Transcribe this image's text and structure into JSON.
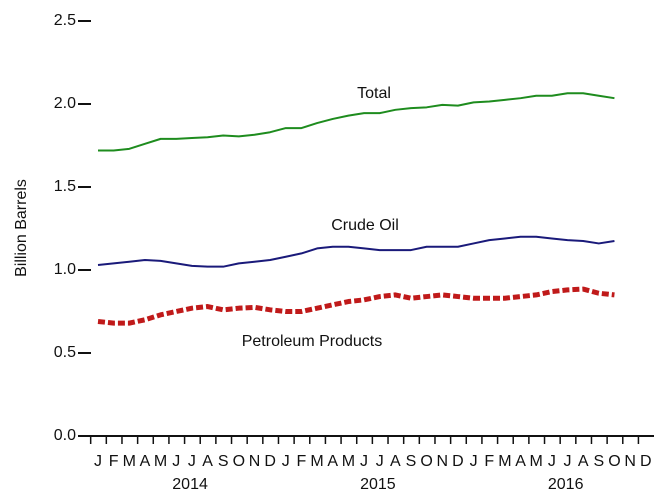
{
  "chart_data": {
    "type": "line",
    "y_label": "Billion Barrels",
    "categories": [
      "J",
      "F",
      "M",
      "A",
      "M",
      "J",
      "J",
      "A",
      "S",
      "O",
      "N",
      "D",
      "J",
      "F",
      "M",
      "A",
      "M",
      "J",
      "J",
      "A",
      "S",
      "O",
      "N",
      "D",
      "J",
      "F",
      "M",
      "A",
      "M",
      "J",
      "J",
      "A",
      "S",
      "O",
      "N",
      "D"
    ],
    "year_labels": [
      "2014",
      "2015",
      "2016"
    ],
    "annotations": [
      "Total",
      "Crude Oil",
      "Petroleum Products"
    ],
    "series": [
      {
        "name": "Total",
        "color": "#1e8c1e",
        "style": "solid",
        "values": [
          1.72,
          1.72,
          1.73,
          1.76,
          1.79,
          1.79,
          1.795,
          1.8,
          1.81,
          1.805,
          1.815,
          1.83,
          1.855,
          1.855,
          1.885,
          1.91,
          1.93,
          1.945,
          1.945,
          1.965,
          1.975,
          1.98,
          1.995,
          1.99,
          2.01,
          2.015,
          2.025,
          2.035,
          2.05,
          2.05,
          2.065,
          2.065,
          2.05,
          2.035,
          null,
          null
        ]
      },
      {
        "name": "Crude Oil",
        "color": "#1a1a7a",
        "style": "solid",
        "values": [
          1.03,
          1.04,
          1.05,
          1.06,
          1.055,
          1.04,
          1.025,
          1.02,
          1.02,
          1.04,
          1.05,
          1.06,
          1.08,
          1.1,
          1.13,
          1.14,
          1.14,
          1.13,
          1.12,
          1.12,
          1.12,
          1.14,
          1.14,
          1.14,
          1.16,
          1.18,
          1.19,
          1.2,
          1.2,
          1.19,
          1.18,
          1.175,
          1.16,
          1.175,
          null,
          null
        ]
      },
      {
        "name": "Petroleum Products",
        "color": "#c01a1a",
        "style": "dashed",
        "values": [
          0.69,
          0.68,
          0.68,
          0.7,
          0.73,
          0.75,
          0.77,
          0.78,
          0.76,
          0.77,
          0.775,
          0.76,
          0.75,
          0.75,
          0.77,
          0.79,
          0.81,
          0.82,
          0.84,
          0.85,
          0.83,
          0.84,
          0.85,
          0.84,
          0.83,
          0.83,
          0.83,
          0.84,
          0.85,
          0.87,
          0.88,
          0.885,
          0.86,
          0.85,
          null,
          null
        ]
      }
    ],
    "ylim": [
      0,
      2.5
    ],
    "yticks": [
      {
        "value": 0,
        "label": "0.0"
      },
      0.5,
      {
        "value": 1,
        "label": "1.0"
      },
      1.5,
      {
        "value": 2,
        "label": "2.0"
      },
      2.5
    ]
  }
}
